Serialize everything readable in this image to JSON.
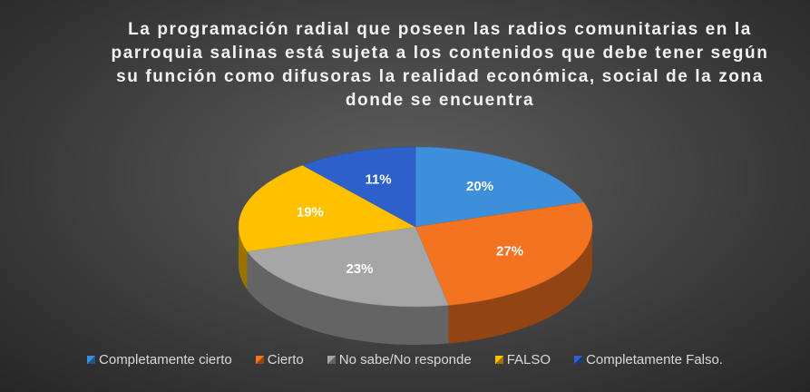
{
  "chart_data": {
    "type": "pie3d",
    "title": "La programación radial que poseen las radios comunitarias en la parroquia salinas   está sujeta a los contenidos que debe tener según su función como difusoras la realidad económica, social de la zona donde se encuentra",
    "categories": [
      "Completamente cierto",
      "Cierto",
      "No sabe/No responde",
      "FALSO",
      "Completamente Falso."
    ],
    "values": [
      20,
      27,
      23,
      19,
      11
    ],
    "value_labels": [
      "20%",
      "27%",
      "23%",
      "19%",
      "11%"
    ],
    "colors": [
      "#3d8fdc",
      "#f47320",
      "#a6a6a6",
      "#ffc000",
      "#2e60cc"
    ],
    "legend": "bottom"
  }
}
